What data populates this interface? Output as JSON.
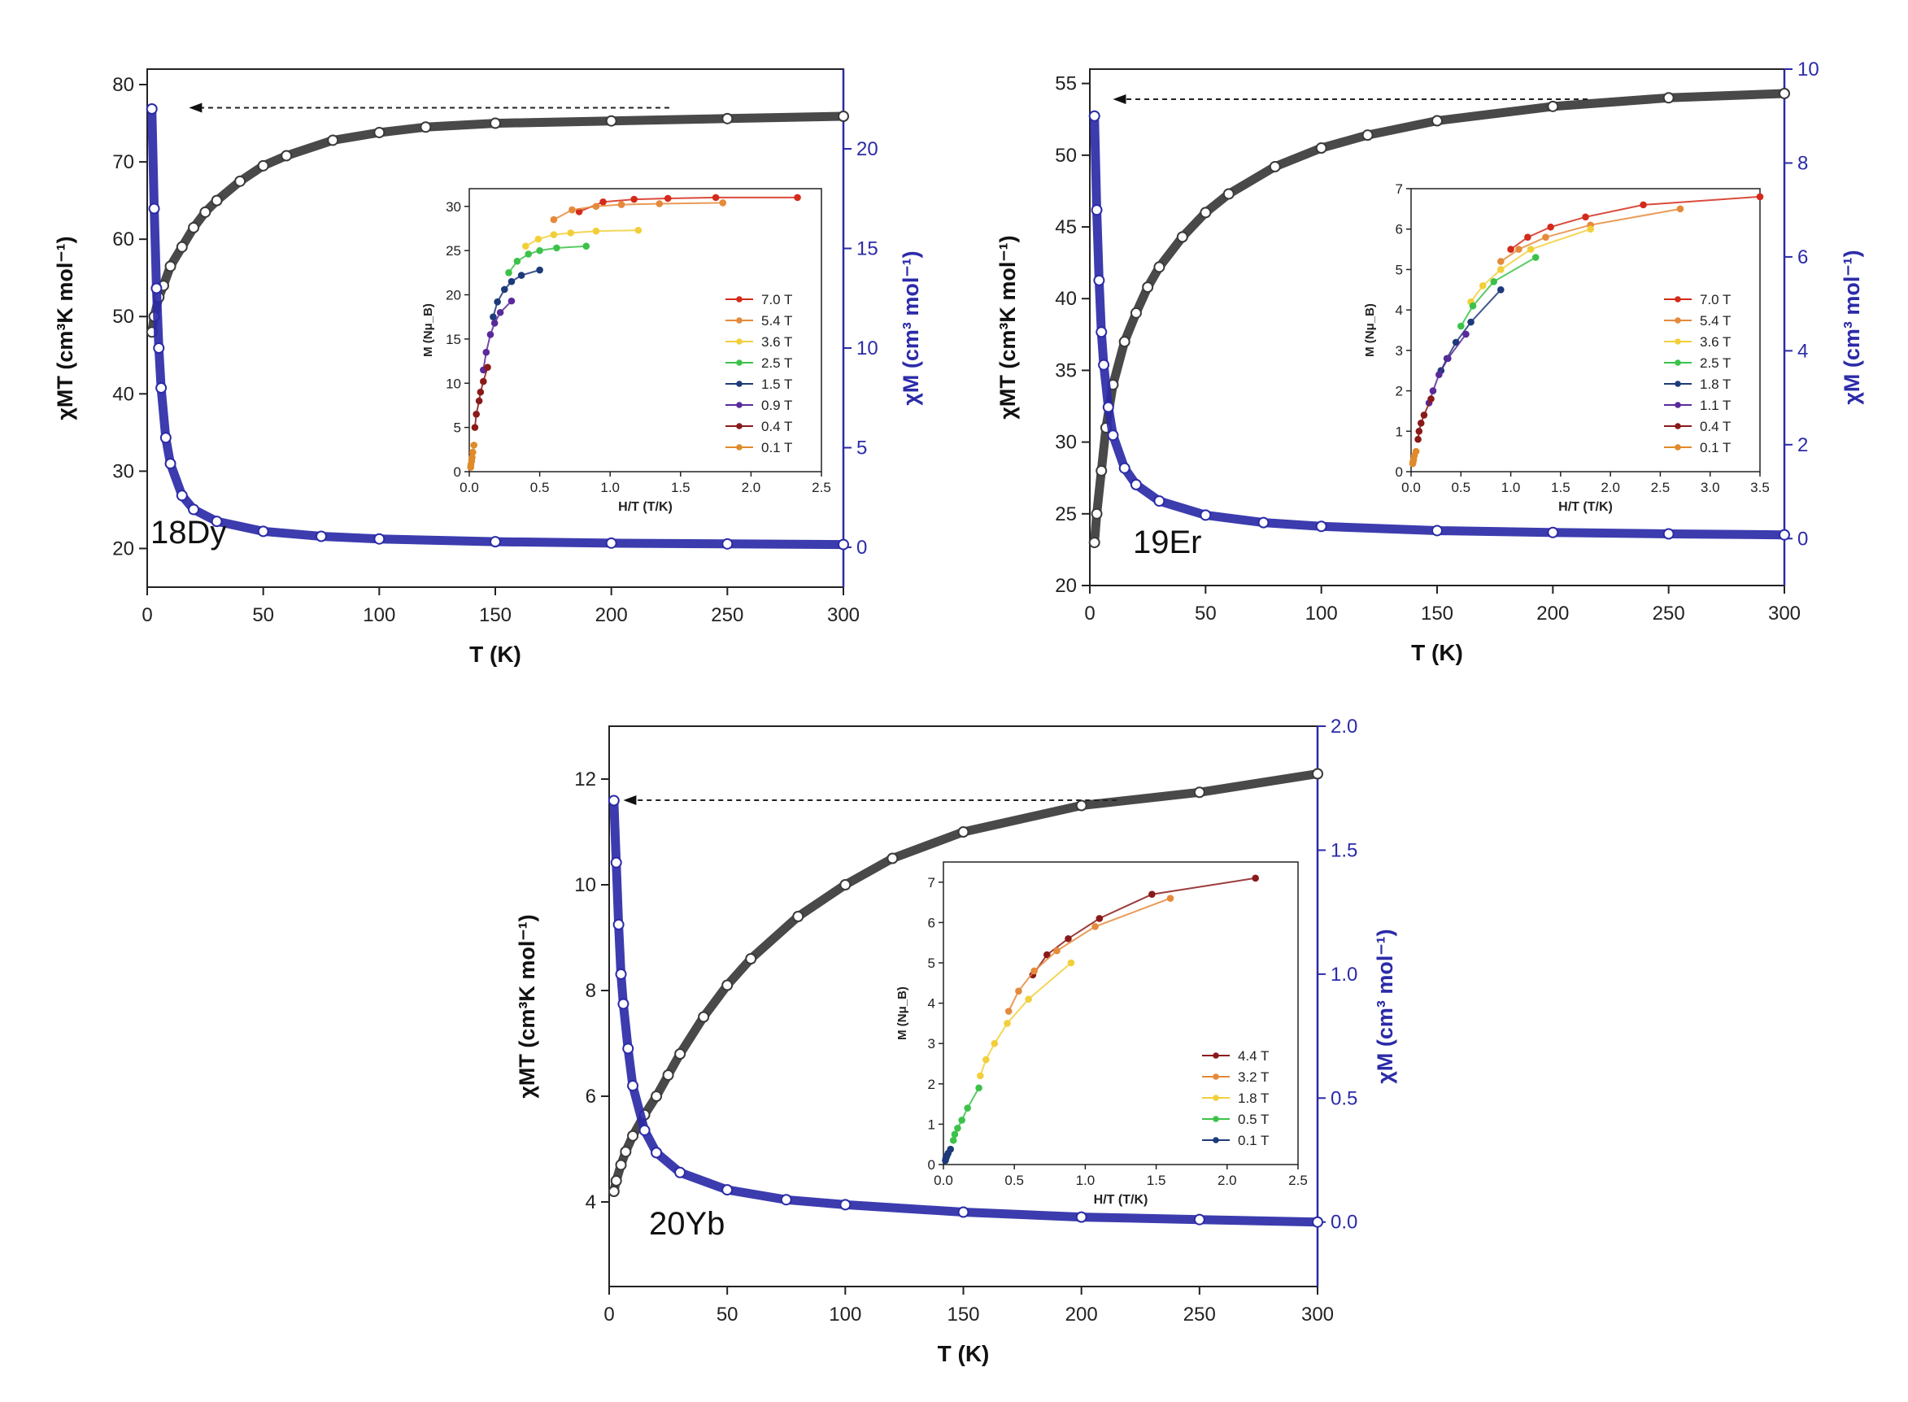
{
  "chart_data": [
    {
      "id": "18Dy",
      "type": "scatter",
      "label": "18Dy",
      "xlabel": "T (K)",
      "ylabel_left": "χMT (cm³K mol⁻¹)",
      "ylabel_right": "χM (cm³ mol⁻¹)",
      "xlim": [
        0,
        300
      ],
      "ylim_left": [
        15,
        82
      ],
      "ylim_right": [
        -2,
        24
      ],
      "xticks": [
        0,
        50,
        100,
        150,
        200,
        250,
        300
      ],
      "yticks_left": [
        20,
        30,
        40,
        50,
        60,
        70,
        80
      ],
      "yticks_right": [
        0,
        5,
        10,
        15,
        20
      ],
      "colors": {
        "chiT": "#3a3a3a",
        "chi": "#2b2ba8"
      },
      "series": [
        {
          "name": "χMT",
          "axis": "left",
          "x": [
            2,
            3,
            5,
            7,
            10,
            15,
            20,
            25,
            30,
            40,
            50,
            60,
            80,
            100,
            120,
            150,
            200,
            250,
            300
          ],
          "y": [
            48,
            50,
            52.5,
            54,
            56.5,
            59,
            61.5,
            63.5,
            65,
            67.5,
            69.5,
            70.8,
            72.8,
            73.8,
            74.5,
            75.0,
            75.3,
            75.6,
            75.9
          ]
        },
        {
          "name": "χM",
          "axis": "right",
          "x": [
            2,
            3,
            4,
            5,
            6,
            8,
            10,
            15,
            20,
            30,
            50,
            75,
            100,
            150,
            200,
            250,
            300
          ],
          "y": [
            22,
            17,
            13,
            10,
            8,
            5.5,
            4.2,
            2.6,
            1.9,
            1.3,
            0.8,
            0.55,
            0.42,
            0.28,
            0.21,
            0.17,
            0.14
          ]
        }
      ],
      "arrow": {
        "from": 225,
        "to": 18,
        "y": 77
      },
      "inset": {
        "xlabel": "H/T (T/K)",
        "ylabel": "M (Nμ_B)",
        "xlim": [
          0,
          2.5
        ],
        "ylim": [
          0,
          32
        ],
        "xticks": [
          0.0,
          0.5,
          1.0,
          1.5,
          2.0,
          2.5
        ],
        "yticks": [
          0,
          5,
          10,
          15,
          20,
          25,
          30
        ],
        "series": [
          {
            "name": "7.0 T",
            "color": "#d42a1a",
            "x": [
              0.78,
              0.95,
              1.17,
              1.41,
              1.75,
              2.33
            ],
            "y": [
              29.4,
              30.5,
              30.8,
              30.9,
              31.0,
              31.0
            ]
          },
          {
            "name": "5.4 T",
            "color": "#e58a3a",
            "x": [
              0.6,
              0.73,
              0.9,
              1.08,
              1.35,
              1.8
            ],
            "y": [
              28.5,
              29.6,
              30.0,
              30.2,
              30.3,
              30.4
            ]
          },
          {
            "name": "3.6 T",
            "color": "#f2cf3a",
            "x": [
              0.4,
              0.49,
              0.6,
              0.72,
              0.9,
              1.2
            ],
            "y": [
              25.5,
              26.3,
              26.8,
              27.0,
              27.2,
              27.3
            ]
          },
          {
            "name": "2.5 T",
            "color": "#3cc24a",
            "x": [
              0.28,
              0.34,
              0.42,
              0.5,
              0.62,
              0.83
            ],
            "y": [
              22.5,
              23.8,
              24.6,
              25.0,
              25.3,
              25.5
            ]
          },
          {
            "name": "1.5 T",
            "color": "#1d3a7a",
            "x": [
              0.17,
              0.2,
              0.25,
              0.3,
              0.37,
              0.5
            ],
            "y": [
              17.5,
              19.2,
              20.6,
              21.5,
              22.2,
              22.8
            ]
          },
          {
            "name": "0.9 T",
            "color": "#5a2a9a",
            "x": [
              0.1,
              0.12,
              0.15,
              0.18,
              0.22,
              0.3
            ],
            "y": [
              11.5,
              13.5,
              15.5,
              16.8,
              18.0,
              19.3
            ]
          },
          {
            "name": "0.4 T",
            "color": "#8a1a1a",
            "x": [
              0.04,
              0.05,
              0.07,
              0.08,
              0.1,
              0.13
            ],
            "y": [
              5.0,
              6.5,
              8.0,
              9.0,
              10.2,
              11.8
            ]
          },
          {
            "name": "0.1 T",
            "color": "#e08a2a",
            "x": [
              0.01,
              0.012,
              0.017,
              0.02,
              0.025,
              0.033
            ],
            "y": [
              0.5,
              0.8,
              1.2,
              1.6,
              2.2,
              3.0
            ]
          }
        ]
      }
    },
    {
      "id": "19Er",
      "type": "scatter",
      "label": "19Er",
      "xlabel": "T (K)",
      "ylabel_left": "χMT (cm³K mol⁻¹)",
      "ylabel_right": "χM (cm³ mol⁻¹)",
      "xlim": [
        0,
        300
      ],
      "ylim_left": [
        20,
        56
      ],
      "ylim_right": [
        -1,
        10
      ],
      "xticks": [
        0,
        50,
        100,
        150,
        200,
        250,
        300
      ],
      "yticks_left": [
        20,
        25,
        30,
        35,
        40,
        45,
        50,
        55
      ],
      "yticks_right": [
        0,
        2,
        4,
        6,
        8,
        10
      ],
      "colors": {
        "chiT": "#3a3a3a",
        "chi": "#2b2ba8"
      },
      "series": [
        {
          "name": "χMT",
          "axis": "left",
          "x": [
            2,
            3,
            5,
            7,
            10,
            15,
            20,
            25,
            30,
            40,
            50,
            60,
            80,
            100,
            120,
            150,
            200,
            250,
            300
          ],
          "y": [
            23,
            25,
            28,
            31,
            34,
            37,
            39,
            40.8,
            42.2,
            44.3,
            46,
            47.3,
            49.2,
            50.5,
            51.4,
            52.4,
            53.4,
            54.0,
            54.3
          ]
        },
        {
          "name": "χM",
          "axis": "right",
          "x": [
            2,
            3,
            4,
            5,
            6,
            8,
            10,
            15,
            20,
            30,
            50,
            75,
            100,
            150,
            200,
            250,
            300
          ],
          "y": [
            9,
            7,
            5.5,
            4.4,
            3.7,
            2.8,
            2.2,
            1.5,
            1.15,
            0.8,
            0.5,
            0.34,
            0.26,
            0.17,
            0.13,
            0.1,
            0.08
          ]
        }
      ],
      "arrow": {
        "from": 215,
        "to": 10,
        "y": 53.9
      },
      "inset": {
        "xlabel": "H/T (T/K)",
        "ylabel": "M (Nμ_B)",
        "xlim": [
          0,
          3.5
        ],
        "ylim": [
          0,
          7
        ],
        "xticks": [
          0.0,
          0.5,
          1.0,
          1.5,
          2.0,
          2.5,
          3.0,
          3.5
        ],
        "yticks": [
          0,
          1,
          2,
          3,
          4,
          5,
          6,
          7
        ],
        "series": [
          {
            "name": "7.0 T",
            "color": "#d42a1a",
            "x": [
              1.0,
              1.17,
              1.4,
              1.75,
              2.33,
              3.5
            ],
            "y": [
              5.5,
              5.8,
              6.05,
              6.3,
              6.6,
              6.8
            ]
          },
          {
            "name": "5.4 T",
            "color": "#e58a3a",
            "x": [
              0.9,
              1.08,
              1.35,
              1.8,
              2.7
            ],
            "y": [
              5.2,
              5.5,
              5.8,
              6.1,
              6.5
            ]
          },
          {
            "name": "3.6 T",
            "color": "#f2cf3a",
            "x": [
              0.6,
              0.72,
              0.9,
              1.2,
              1.8
            ],
            "y": [
              4.2,
              4.6,
              5.0,
              5.5,
              6.0
            ]
          },
          {
            "name": "2.5 T",
            "color": "#3cc24a",
            "x": [
              0.5,
              0.62,
              0.83,
              1.25
            ],
            "y": [
              3.6,
              4.1,
              4.7,
              5.3
            ]
          },
          {
            "name": "1.8 T",
            "color": "#1d3a7a",
            "x": [
              0.3,
              0.36,
              0.45,
              0.6,
              0.9
            ],
            "y": [
              2.5,
              2.8,
              3.2,
              3.7,
              4.5
            ]
          },
          {
            "name": "1.1 T",
            "color": "#5a2a9a",
            "x": [
              0.18,
              0.22,
              0.28,
              0.37,
              0.55
            ],
            "y": [
              1.7,
              2.0,
              2.4,
              2.8,
              3.4
            ]
          },
          {
            "name": "0.4 T",
            "color": "#8a1a1a",
            "x": [
              0.07,
              0.08,
              0.1,
              0.13,
              0.2
            ],
            "y": [
              0.8,
              1.0,
              1.2,
              1.4,
              1.8
            ]
          },
          {
            "name": "0.1 T",
            "color": "#e08a2a",
            "x": [
              0.017,
              0.02,
              0.025,
              0.033,
              0.05
            ],
            "y": [
              0.2,
              0.25,
              0.3,
              0.4,
              0.5
            ]
          }
        ]
      }
    },
    {
      "id": "20Yb",
      "type": "scatter",
      "label": "20Yb",
      "xlabel": "T (K)",
      "ylabel_left": "χMT (cm³K mol⁻¹)",
      "ylabel_right": "χM (cm³ mol⁻¹)",
      "xlim": [
        0,
        300
      ],
      "ylim_left": [
        2.4,
        13
      ],
      "ylim_right": [
        -0.26,
        2.0
      ],
      "xticks": [
        0,
        50,
        100,
        150,
        200,
        250,
        300
      ],
      "yticks_left": [
        4,
        6,
        8,
        10,
        12
      ],
      "yticks_right": [
        0.0,
        0.5,
        1.0,
        1.5,
        2.0
      ],
      "colors": {
        "chiT": "#3a3a3a",
        "chi": "#2b2ba8"
      },
      "series": [
        {
          "name": "χMT",
          "axis": "left",
          "x": [
            2,
            3,
            5,
            7,
            10,
            15,
            20,
            25,
            30,
            40,
            50,
            60,
            80,
            100,
            120,
            150,
            200,
            250,
            300
          ],
          "y": [
            4.2,
            4.4,
            4.7,
            4.95,
            5.25,
            5.65,
            6.0,
            6.4,
            6.8,
            7.5,
            8.1,
            8.6,
            9.4,
            10.0,
            10.5,
            11.0,
            11.5,
            11.75,
            12.1
          ]
        },
        {
          "name": "χM",
          "axis": "right",
          "x": [
            2,
            3,
            4,
            5,
            6,
            8,
            10,
            15,
            20,
            30,
            50,
            75,
            100,
            150,
            200,
            250,
            300
          ],
          "y": [
            1.7,
            1.45,
            1.2,
            1.0,
            0.88,
            0.7,
            0.55,
            0.37,
            0.28,
            0.2,
            0.13,
            0.09,
            0.07,
            0.04,
            0.02,
            0.01,
            0.0
          ]
        }
      ],
      "arrow": {
        "from": 215,
        "to": 6,
        "y": 11.6
      },
      "inset": {
        "xlabel": "H/T (T/K)",
        "ylabel": "M (Nμ_B)",
        "xlim": [
          0,
          2.5
        ],
        "ylim": [
          0,
          7.5
        ],
        "xticks": [
          0.0,
          0.5,
          1.0,
          1.5,
          2.0,
          2.5
        ],
        "yticks": [
          0,
          1,
          2,
          3,
          4,
          5,
          6,
          7
        ],
        "series": [
          {
            "name": "4.4 T",
            "color": "#8a1a1a",
            "x": [
              0.63,
              0.73,
              0.88,
              1.1,
              1.47,
              2.2
            ],
            "y": [
              4.7,
              5.2,
              5.6,
              6.1,
              6.7,
              7.1
            ]
          },
          {
            "name": "3.2 T",
            "color": "#e58a3a",
            "x": [
              0.46,
              0.53,
              0.64,
              0.8,
              1.07,
              1.6
            ],
            "y": [
              3.8,
              4.3,
              4.8,
              5.3,
              5.9,
              6.6
            ]
          },
          {
            "name": "1.8 T",
            "color": "#f2cf3a",
            "x": [
              0.26,
              0.3,
              0.36,
              0.45,
              0.6,
              0.9
            ],
            "y": [
              2.2,
              2.6,
              3.0,
              3.5,
              4.1,
              5.0
            ]
          },
          {
            "name": "0.5 T",
            "color": "#3cc24a",
            "x": [
              0.07,
              0.08,
              0.1,
              0.13,
              0.17,
              0.25
            ],
            "y": [
              0.6,
              0.75,
              0.9,
              1.1,
              1.4,
              1.9
            ]
          },
          {
            "name": "0.1 T",
            "color": "#1d3a7a",
            "x": [
              0.014,
              0.017,
              0.02,
              0.025,
              0.033,
              0.05
            ],
            "y": [
              0.1,
              0.15,
              0.18,
              0.22,
              0.28,
              0.38
            ]
          }
        ]
      }
    }
  ]
}
